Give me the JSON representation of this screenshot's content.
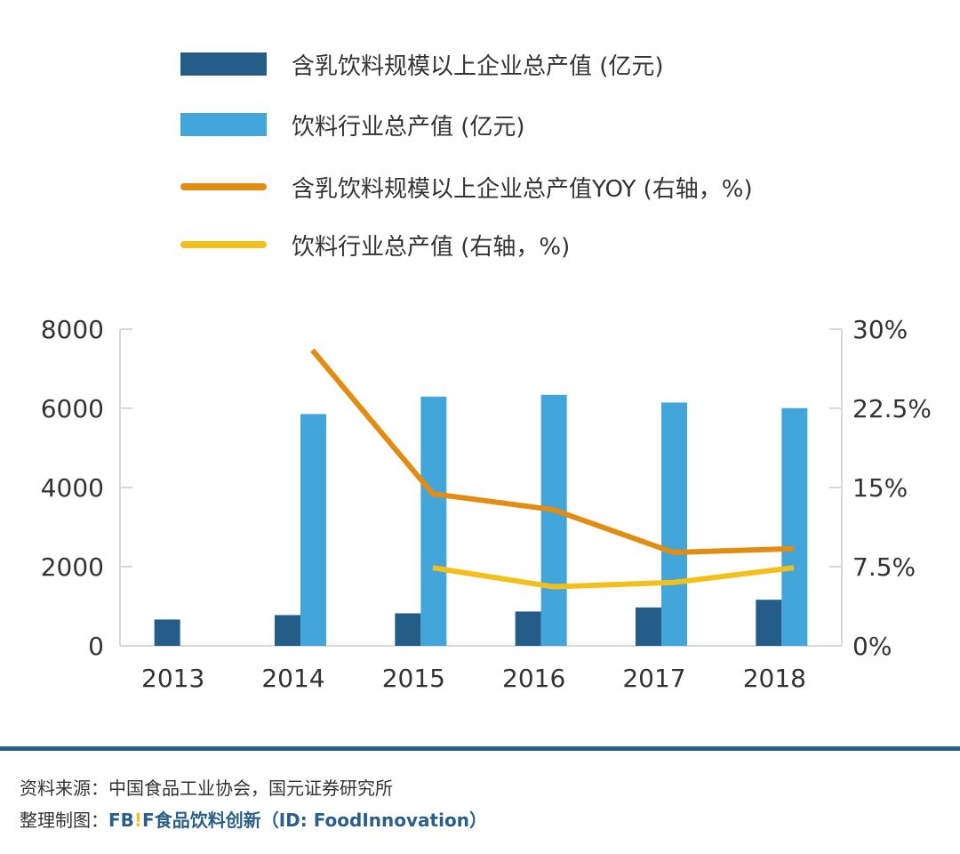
{
  "chart_data": {
    "type": "bar",
    "categories": [
      "2013",
      "2014",
      "2015",
      "2016",
      "2017",
      "2018"
    ],
    "series": [
      {
        "name": "含乳饮料规模以上企业总产值 (亿元)",
        "kind": "bar",
        "axis": "left",
        "color": "#245d87",
        "values": [
          665,
          777,
          822,
          867,
          970,
          1165
        ]
      },
      {
        "name": "饮料行业总产值 (亿元)",
        "kind": "bar",
        "axis": "left",
        "color": "#42a6db",
        "values": [
          null,
          5855,
          6297,
          6342,
          6147,
          6005
        ]
      },
      {
        "name": "含乳饮料规模以上企业总产值YOY (右轴，%)",
        "kind": "line",
        "axis": "right",
        "color": "#e38c12",
        "values": [
          null,
          28.0,
          14.4,
          12.9,
          8.85,
          9.2
        ]
      },
      {
        "name": "饮料行业总产值 (右轴，%)",
        "kind": "line",
        "axis": "right",
        "color": "#f3bf1b",
        "values": [
          null,
          null,
          7.4,
          5.6,
          6.0,
          7.4
        ]
      }
    ],
    "y_left": {
      "range": [
        0,
        8000
      ],
      "ticks": [
        "0",
        "2000",
        "4000",
        "6000",
        "8000"
      ]
    },
    "y_right": {
      "range": [
        0,
        30
      ],
      "ticks": [
        "0%",
        "7.5%",
        "15%",
        "22.5%",
        "30%"
      ]
    },
    "grid": false,
    "legend_placement": "top"
  },
  "footer": {
    "source": "资料来源：中国食品工业协会，国元证券研究所",
    "made_by_label": "整理制图：",
    "brand_fb": "FB",
    "brand_bang": "!",
    "brand_f": "F",
    "brand_rest": "食品饮料创新（ID: FoodInnovation）"
  }
}
